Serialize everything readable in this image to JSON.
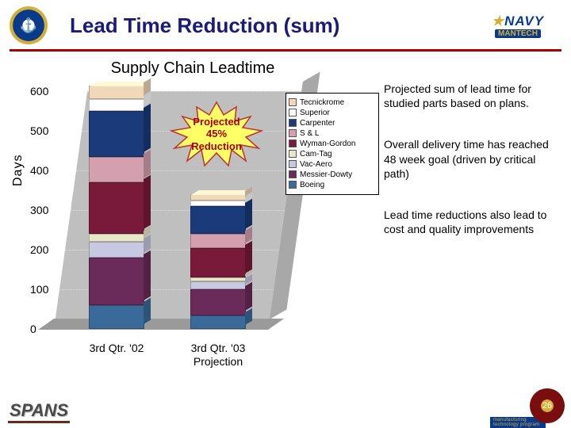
{
  "header": {
    "title": "Lead Time Reduction (sum)",
    "left_seal_glyph": "⚓",
    "right_logo_text": "NAVY",
    "right_logo_sub": "MANTECH",
    "right_logo_tag": "manufacturing technology program"
  },
  "chart": {
    "type": "stacked-bar-3d",
    "title": "Supply Chain Leadtime",
    "ylabel": "Days",
    "ylim": [
      0,
      600
    ],
    "ytick_step": 100,
    "title_fontsize": 20,
    "label_fontsize": 16,
    "tick_fontsize": 14,
    "background_color": "#bfbfbf",
    "series": [
      {
        "name": "Tecnickrome",
        "color": "#f0d8b8"
      },
      {
        "name": "Superior",
        "color": "#ffffff"
      },
      {
        "name": "Carpenter",
        "color": "#1a3a7a"
      },
      {
        "name": "S & L",
        "color": "#d4a0b0"
      },
      {
        "name": "Wyman-Gordon",
        "color": "#7a1a3a"
      },
      {
        "name": "Cam-Tag",
        "color": "#e8e8c8"
      },
      {
        "name": "Vac-Aero",
        "color": "#c8c8e0"
      },
      {
        "name": "Messier-Dowty",
        "color": "#6a2a5a"
      },
      {
        "name": "Boeing",
        "color": "#3a6a9a"
      }
    ],
    "categories": [
      "3rd Qtr. '02",
      "3rd Qtr. '03\nProjection"
    ],
    "bars": [
      {
        "x": 0,
        "total": 615,
        "segments": [
          35,
          30,
          115,
          65,
          130,
          20,
          40,
          120,
          60
        ]
      },
      {
        "x": 1,
        "total": 340,
        "segments": [
          15,
          15,
          70,
          35,
          75,
          10,
          20,
          65,
          35
        ]
      }
    ],
    "callout": {
      "lines": [
        "Projected",
        "45%",
        "Reduction"
      ],
      "fill": "#ffff66",
      "stroke": "#c03030",
      "text_color": "#a00000"
    }
  },
  "notes": {
    "p1": "Projected sum of lead time for studied parts based on plans.",
    "p2": "Overall delivery time has reached 48 week goal (driven by critical path)",
    "p3": "Lead time reductions also lead to cost and quality improvements"
  },
  "footer": {
    "left": "SPANS",
    "page": "26"
  }
}
